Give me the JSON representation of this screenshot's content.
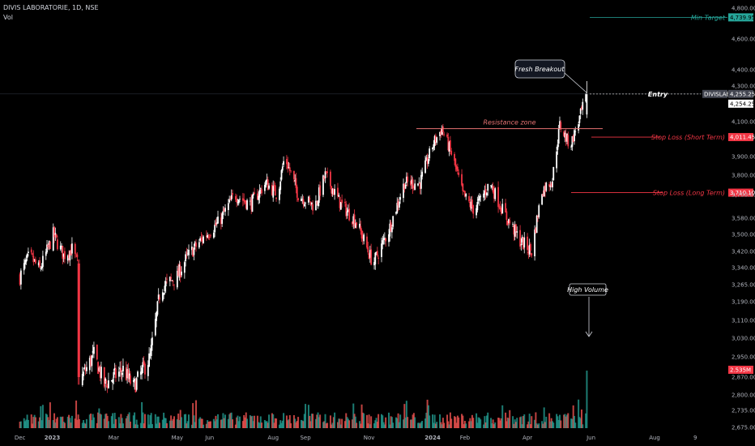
{
  "header": {
    "symbol": "DIVIS LABORATORIE, 1D, NSE",
    "volume_label": "Vol"
  },
  "colors": {
    "background": "#000000",
    "up": "#ffffff",
    "down": "#f23645",
    "vol_up": "#26a69a",
    "vol_down": "#ef5350",
    "target": "#26a69a",
    "stop": "#f23645",
    "resistance": "#e87373"
  },
  "chart_data": {
    "type": "candlestick",
    "title": "DIVIS LABORATORIE, 1D, NSE",
    "price_axis": {
      "ticks": [
        4800,
        4600,
        4400,
        4300,
        4100,
        3900,
        3800,
        3700,
        3580,
        3500,
        3420,
        3340,
        3265,
        3190,
        3110,
        3030,
        2950,
        2870,
        2800,
        2735,
        2675
      ],
      "tick_labels": [
        "4,800.00",
        "4,600.00",
        "4,400.00",
        "4,300.00",
        "4,100.00",
        "3,900.00",
        "3,800.00",
        "3,700.00",
        "3,580.00",
        "3,500.00",
        "3,420.00",
        "3,340.00",
        "3,265.00",
        "3,190.00",
        "3,110.00",
        "3,030.00",
        "2,950.00",
        "2,870.00",
        "2,800.00",
        "2,735.00",
        "2,675.00"
      ]
    },
    "time_axis": {
      "labels": [
        "Dec",
        "2023",
        "Mar",
        "May",
        "Jun",
        "Aug",
        "Sep",
        "Nov",
        "2024",
        "Feb",
        "Apr",
        "Jun",
        "Aug",
        "9"
      ]
    },
    "price_path": [
      [
        "2022-12-01",
        3300
      ],
      [
        "2022-12-10",
        3400
      ],
      [
        "2022-12-20",
        3330
      ],
      [
        "2023-01-02",
        3500
      ],
      [
        "2023-01-12",
        3400
      ],
      [
        "2023-01-20",
        3430
      ],
      [
        "2023-01-26",
        3350
      ],
      [
        "2023-01-27",
        2850
      ],
      [
        "2023-02-10",
        2960
      ],
      [
        "2023-02-20",
        2840
      ],
      [
        "2023-03-10",
        2900
      ],
      [
        "2023-03-20",
        2830
      ],
      [
        "2023-04-05",
        2950
      ],
      [
        "2023-04-15",
        3250
      ],
      [
        "2023-05-01",
        3300
      ],
      [
        "2023-05-10",
        3390
      ],
      [
        "2023-05-25",
        3480
      ],
      [
        "2023-06-10",
        3560
      ],
      [
        "2023-06-25",
        3700
      ],
      [
        "2023-07-10",
        3650
      ],
      [
        "2023-07-25",
        3760
      ],
      [
        "2023-08-05",
        3700
      ],
      [
        "2023-08-12",
        3900
      ],
      [
        "2023-08-25",
        3700
      ],
      [
        "2023-09-10",
        3640
      ],
      [
        "2023-09-20",
        3800
      ],
      [
        "2023-10-05",
        3650
      ],
      [
        "2023-10-20",
        3560
      ],
      [
        "2023-11-05",
        3360
      ],
      [
        "2023-11-20",
        3520
      ],
      [
        "2023-12-05",
        3760
      ],
      [
        "2023-12-20",
        3760
      ],
      [
        "2024-01-02",
        3980
      ],
      [
        "2024-01-10",
        4060
      ],
      [
        "2024-01-20",
        3900
      ],
      [
        "2024-01-30",
        3700
      ],
      [
        "2024-02-10",
        3620
      ],
      [
        "2024-02-25",
        3760
      ],
      [
        "2024-03-10",
        3600
      ],
      [
        "2024-03-25",
        3470
      ],
      [
        "2024-04-05",
        3420
      ],
      [
        "2024-04-15",
        3720
      ],
      [
        "2024-04-25",
        3780
      ],
      [
        "2024-05-02",
        4080
      ],
      [
        "2024-05-12",
        3960
      ],
      [
        "2024-05-20",
        4100
      ],
      [
        "2024-05-28",
        4254.25
      ]
    ],
    "volume": {
      "high_volume_label": "High Volume",
      "last_value_label": "2.535M",
      "last_value": 2.535
    },
    "levels": {
      "min_target": {
        "label": "Min Target",
        "value": 4739.95,
        "tag": "4,739.95"
      },
      "entry": {
        "label": "Entry",
        "value": 4255.25,
        "tag": "4,255.25",
        "symbol_tag": "DIVISLAB",
        "last_price_tag": "4,254.25"
      },
      "resistance": {
        "label": "Resistance zone",
        "value": 4060
      },
      "stop_short": {
        "label": "Stop Loss (Short Term)",
        "value": 4011.45,
        "tag": "4,011.45"
      },
      "stop_long": {
        "label": "Stop Loss (Long Term)",
        "value": 3710.1,
        "tag": "3,710.10"
      }
    },
    "annotations": {
      "fresh_breakout": "Fresh Breakout",
      "high_volume": "High Volume"
    }
  }
}
